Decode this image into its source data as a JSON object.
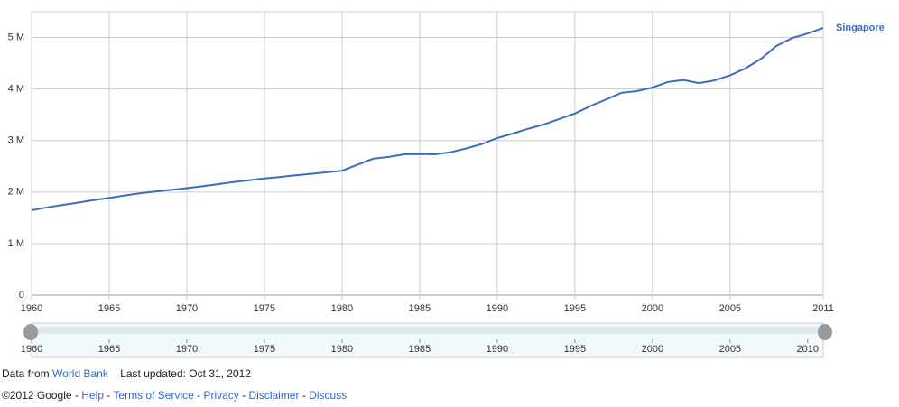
{
  "chart_data": {
    "type": "line",
    "x": [
      1960,
      1961,
      1962,
      1963,
      1964,
      1965,
      1966,
      1967,
      1968,
      1969,
      1970,
      1971,
      1972,
      1973,
      1974,
      1975,
      1976,
      1977,
      1978,
      1979,
      1980,
      1981,
      1982,
      1983,
      1984,
      1985,
      1986,
      1987,
      1988,
      1989,
      1990,
      1991,
      1992,
      1993,
      1994,
      1995,
      1996,
      1997,
      1998,
      1999,
      2000,
      2001,
      2002,
      2003,
      2004,
      2005,
      2006,
      2007,
      2008,
      2009,
      2010,
      2011
    ],
    "series": [
      {
        "name": "Singapore",
        "color": "#3d6cc2",
        "values": [
          1646000,
          1702000,
          1750000,
          1795000,
          1842000,
          1887000,
          1934000,
          1978000,
          2012000,
          2043000,
          2075000,
          2113000,
          2152000,
          2193000,
          2230000,
          2263000,
          2293000,
          2325000,
          2354000,
          2384000,
          2414000,
          2533000,
          2647000,
          2681000,
          2733000,
          2736000,
          2733000,
          2775000,
          2847000,
          2930000,
          3047000,
          3135000,
          3230000,
          3313000,
          3419000,
          3525000,
          3670000,
          3796000,
          3927000,
          3958000,
          4028000,
          4138000,
          4176000,
          4115000,
          4167000,
          4266000,
          4401000,
          4589000,
          4839000,
          4988000,
          5077000,
          5184000
        ]
      }
    ],
    "xlim": [
      1960,
      2011
    ],
    "xticks": [
      1960,
      1965,
      1970,
      1975,
      1980,
      1985,
      1990,
      1995,
      2000,
      2005,
      2011
    ],
    "ylim": [
      0,
      5500000
    ],
    "yticks": [
      0,
      {
        "value": 1000000,
        "label": "1 M"
      },
      {
        "value": 2000000,
        "label": "2 M"
      },
      {
        "value": 3000000,
        "label": "3 M"
      },
      {
        "value": 4000000,
        "label": "4 M"
      },
      {
        "value": 5000000,
        "label": "5 M"
      }
    ],
    "grid": true,
    "timeline_ticks": [
      1960,
      1965,
      1970,
      1975,
      1980,
      1985,
      1990,
      1995,
      2000,
      2005,
      2010
    ]
  },
  "footer": {
    "source_prefix": "Data from",
    "source": "World Bank",
    "updated": "Last updated: Oct 31, 2012",
    "copyright": "©2012 Google",
    "separator": "-",
    "links": [
      "Help",
      "Terms of Service",
      "Privacy",
      "Disclaimer",
      "Discuss"
    ]
  }
}
